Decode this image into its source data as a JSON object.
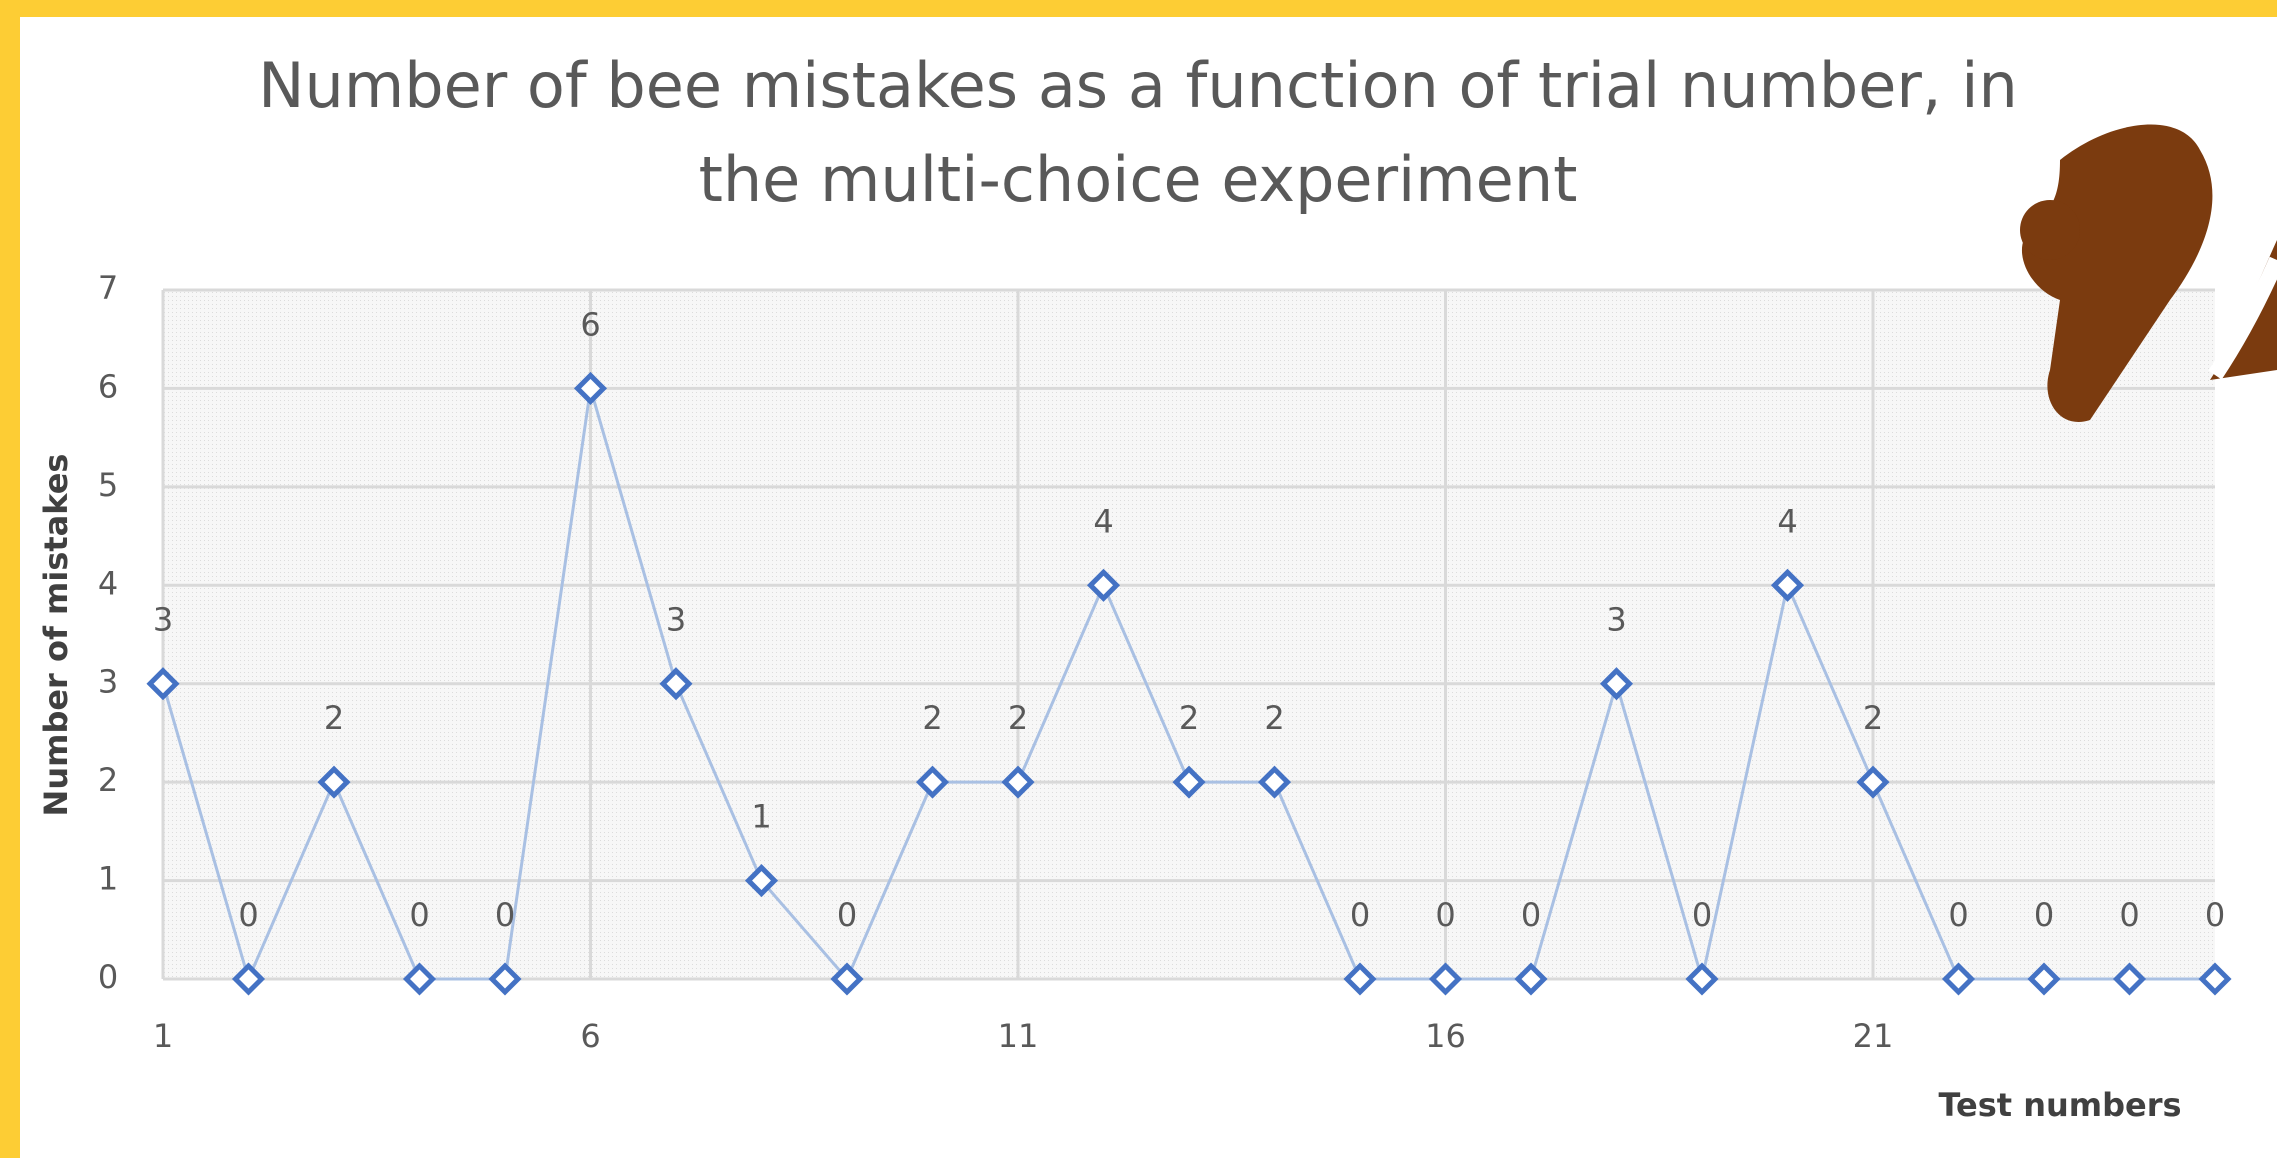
{
  "chart_data": {
    "type": "line",
    "title": [
      "Number of bee mistakes as a function of trial number, in",
      "the multi-choice experiment"
    ],
    "x_label": "Test numbers",
    "y_label": "Number of mistakes",
    "x": [
      1,
      2,
      3,
      4,
      5,
      6,
      7,
      8,
      9,
      10,
      11,
      12,
      13,
      14,
      15,
      16,
      17,
      18,
      19,
      20,
      21,
      22,
      23,
      24,
      25
    ],
    "series": [
      {
        "color": "#4472c4",
        "values": [
          3,
          0,
          2,
          0,
          0,
          6,
          3,
          1,
          0,
          2,
          2,
          4,
          2,
          2,
          0,
          0,
          0,
          3,
          0,
          4,
          2,
          0,
          0,
          0,
          0
        ]
      }
    ],
    "xlim": [
      1,
      25
    ],
    "xticks": [
      1,
      6,
      11,
      16,
      21
    ],
    "ylim": [
      0,
      7
    ],
    "yticks": [
      0,
      1,
      2,
      3,
      4,
      5,
      6,
      7
    ],
    "grid": true
  }
}
